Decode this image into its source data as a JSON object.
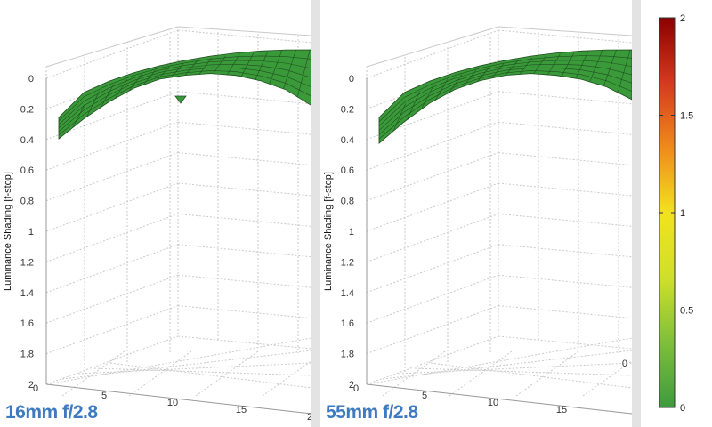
{
  "chart_data": [
    {
      "type": "surface",
      "title": "",
      "label": "16mm f/2.8",
      "ylabel": "Luminance Shading [f-stop]",
      "z_ticks": [
        "0",
        "0.2",
        "0.4",
        "0.6",
        "0.8",
        "1",
        "1.2",
        "1.4",
        "1.6",
        "1.8",
        "2"
      ],
      "x_ticks": [
        "0",
        "5",
        "10",
        "15",
        "2"
      ],
      "zlim": [
        0,
        2
      ],
      "grid": true,
      "color": "#3a9a3a",
      "surface_edge_shading": [
        0.4,
        0.28,
        0.18,
        0.1,
        0.05,
        0.03,
        0.02,
        0.03,
        0.06,
        0.11,
        0.2
      ],
      "dip_present": true
    },
    {
      "type": "surface",
      "title": "",
      "label": "55mm f/2.8",
      "ylabel": "Luminance Shading [f-stop]",
      "z_ticks": [
        "0",
        "0.2",
        "0.4",
        "0.6",
        "0.8",
        "1",
        "1.2",
        "1.4",
        "1.6",
        "1.8",
        "2"
      ],
      "x_ticks": [
        "0",
        "5",
        "10",
        "15"
      ],
      "extra_tick": "0",
      "zlim": [
        0,
        2
      ],
      "grid": true,
      "color": "#3a9a3a",
      "surface_edge_shading": [
        0.43,
        0.3,
        0.19,
        0.11,
        0.06,
        0.03,
        0.02,
        0.03,
        0.05,
        0.09,
        0.16
      ],
      "dip_present": false
    }
  ],
  "colorbar": {
    "ticks": [
      "2",
      "1.5",
      "1",
      "0.5",
      "0"
    ],
    "range": [
      0,
      2
    ],
    "colors": [
      "#8b0000",
      "#d43a1e",
      "#f08a1c",
      "#f2e21e",
      "#cfe02a",
      "#7fbf3a",
      "#3e9a3e"
    ]
  }
}
